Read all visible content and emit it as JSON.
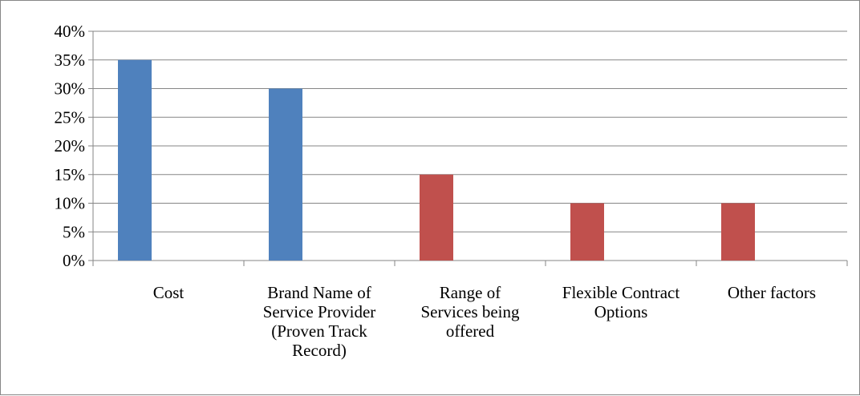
{
  "chart_data": {
    "type": "bar",
    "categories": [
      [
        "Cost"
      ],
      [
        "Brand Name of",
        "Service Provider",
        "(Proven Track",
        "Record)"
      ],
      [
        "Range of",
        "Services being",
        "offered"
      ],
      [
        "Flexible Contract",
        "Options"
      ],
      [
        "Other factors"
      ]
    ],
    "values": [
      35,
      30,
      15,
      10,
      10
    ],
    "value_unit": "percent",
    "bar_colors": [
      "#4f81bd",
      "#4f81bd",
      "#c0504d",
      "#c0504d",
      "#c0504d"
    ],
    "ylim": [
      0,
      40
    ],
    "yticks": [
      0,
      5,
      10,
      15,
      20,
      25,
      30,
      35,
      40
    ],
    "ytick_labels": [
      "0%",
      "5%",
      "10%",
      "15%",
      "20%",
      "25%",
      "30%",
      "35%",
      "40%"
    ],
    "grid": true,
    "title": "",
    "xlabel": "",
    "ylabel": ""
  }
}
